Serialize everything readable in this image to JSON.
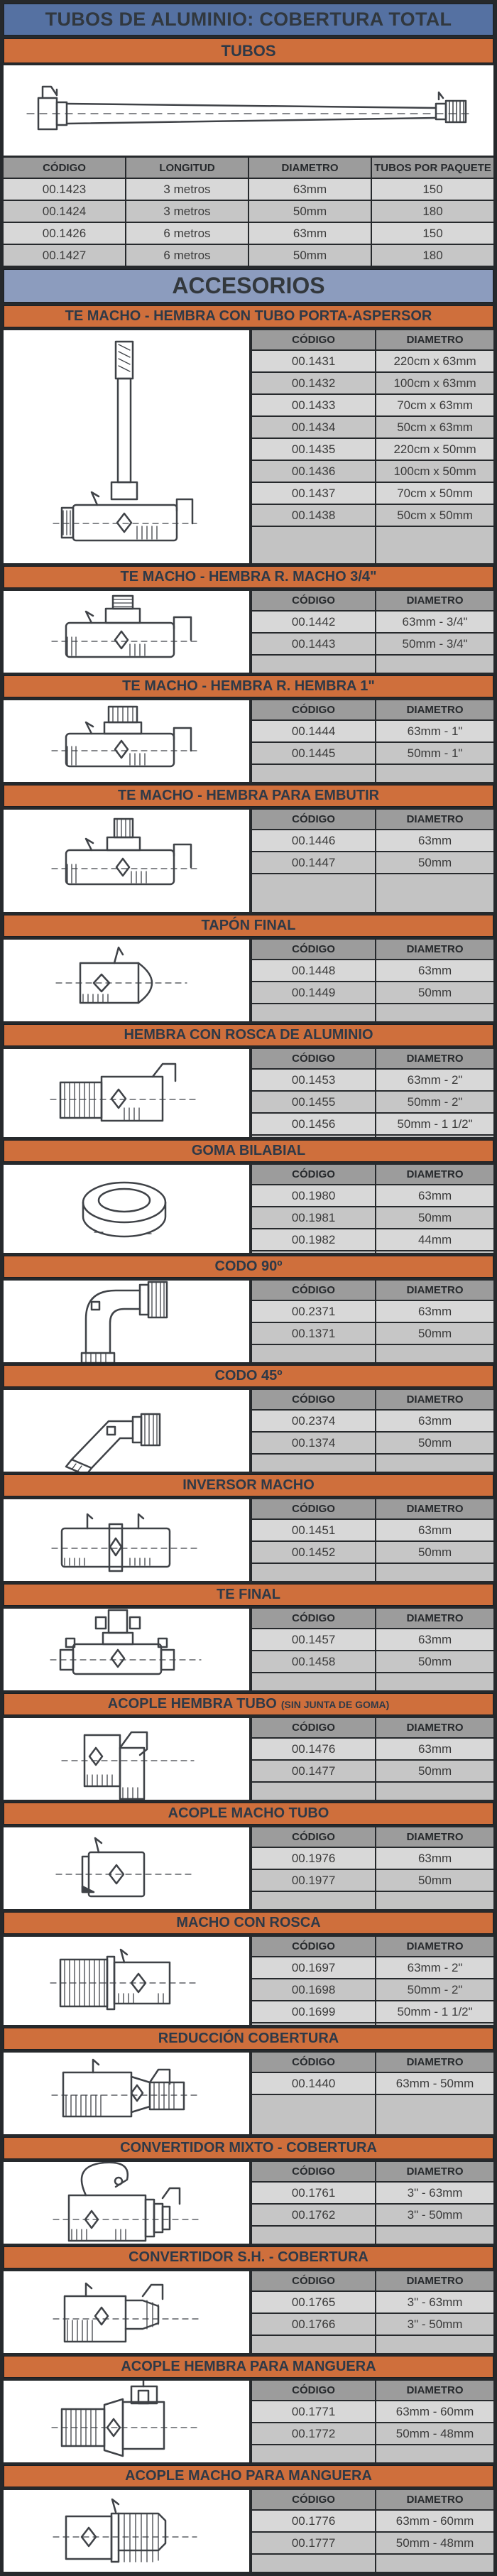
{
  "page": {
    "title": "TUBOS DE ALUMINIO: COBERTURA TOTAL",
    "accessories_header": "ACCESORIOS"
  },
  "colors": {
    "title_bg": "#5571a2",
    "accessories_bg": "#8c9cbe",
    "section_bar_bg": "#cf6f3c",
    "frame_bg": "#26292c",
    "table_header_bg": "#9c9c9c",
    "row_odd": "#d8d8d8",
    "row_even": "#c6c6c6",
    "filler": "#c3c3c3",
    "illustration_bg": "#ffffff"
  },
  "tubos": {
    "header": "TUBOS",
    "illustration_icon": "aluminum-tube-icon",
    "columns": [
      "CÓDIGO",
      "LONGITUD",
      "DIAMETRO",
      "TUBOS POR PAQUETE"
    ],
    "rows": [
      [
        "00.1423",
        "3 metros",
        "63mm",
        "150"
      ],
      [
        "00.1424",
        "3 metros",
        "50mm",
        "180"
      ],
      [
        "00.1426",
        "6 metros",
        "63mm",
        "150"
      ],
      [
        "00.1427",
        "6 metros",
        "50mm",
        "180"
      ]
    ]
  },
  "accessory_columns": [
    "CÓDIGO",
    "DIAMETRO"
  ],
  "accessories": [
    {
      "title": "TE MACHO - HEMBRA CON TUBO PORTA-ASPERSOR",
      "icon": "te-riser-icon",
      "size": "tall",
      "rows": [
        [
          "00.1431",
          "220cm x 63mm"
        ],
        [
          "00.1432",
          "100cm x 63mm"
        ],
        [
          "00.1433",
          "70cm x 63mm"
        ],
        [
          "00.1434",
          "50cm x 63mm"
        ],
        [
          "00.1435",
          "220cm x 50mm"
        ],
        [
          "00.1436",
          "100cm x 50mm"
        ],
        [
          "00.1437",
          "70cm x 50mm"
        ],
        [
          "00.1438",
          "50cm x 50mm"
        ]
      ]
    },
    {
      "title": "TE MACHO - HEMBRA R. MACHO 3/4\"",
      "icon": "tee-male-thread-icon",
      "rows": [
        [
          "00.1442",
          "63mm - 3/4\""
        ],
        [
          "00.1443",
          "50mm - 3/4\""
        ]
      ]
    },
    {
      "title": "TE MACHO - HEMBRA R. HEMBRA 1\"",
      "icon": "tee-female-thread-icon",
      "rows": [
        [
          "00.1444",
          "63mm - 1\""
        ],
        [
          "00.1445",
          "50mm - 1\""
        ]
      ]
    },
    {
      "title": "TE MACHO - HEMBRA PARA EMBUTIR",
      "icon": "tee-flush-icon",
      "size": "mid",
      "rows": [
        [
          "00.1446",
          "63mm"
        ],
        [
          "00.1447",
          "50mm"
        ]
      ]
    },
    {
      "title": "TAPÓN FINAL",
      "icon": "end-plug-icon",
      "rows": [
        [
          "00.1448",
          "63mm"
        ],
        [
          "00.1449",
          "50mm"
        ]
      ]
    },
    {
      "title": "HEMBRA CON ROSCA DE ALUMINIO",
      "icon": "female-thread-icon",
      "rows": [
        [
          "00.1453",
          "63mm - 2\""
        ],
        [
          "00.1455",
          "50mm - 2\""
        ],
        [
          "00.1456",
          "50mm - 1 1/2\""
        ]
      ]
    },
    {
      "title": "GOMA BILABIAL",
      "icon": "rubber-ring-icon",
      "rows": [
        [
          "00.1980",
          "63mm"
        ],
        [
          "00.1981",
          "50mm"
        ],
        [
          "00.1982",
          "44mm"
        ]
      ]
    },
    {
      "title": "CODO 90º",
      "icon": "elbow-90-icon",
      "rows": [
        [
          "00.2371",
          "63mm"
        ],
        [
          "00.1371",
          "50mm"
        ]
      ]
    },
    {
      "title": "CODO 45º",
      "icon": "elbow-45-icon",
      "rows": [
        [
          "00.2374",
          "63mm"
        ],
        [
          "00.1374",
          "50mm"
        ]
      ]
    },
    {
      "title": "INVERSOR MACHO",
      "icon": "male-inverter-icon",
      "rows": [
        [
          "00.1451",
          "63mm"
        ],
        [
          "00.1452",
          "50mm"
        ]
      ]
    },
    {
      "title": "TE FINAL",
      "icon": "end-tee-icon",
      "rows": [
        [
          "00.1457",
          "63mm"
        ],
        [
          "00.1458",
          "50mm"
        ]
      ]
    },
    {
      "title": "ACOPLE HEMBRA TUBO",
      "suffix": "(SIN JUNTA DE GOMA)",
      "icon": "female-tube-coupling-icon",
      "rows": [
        [
          "00.1476",
          "63mm"
        ],
        [
          "00.1477",
          "50mm"
        ]
      ]
    },
    {
      "title": "ACOPLE MACHO TUBO",
      "icon": "male-tube-coupling-icon",
      "rows": [
        [
          "00.1976",
          "63mm"
        ],
        [
          "00.1977",
          "50mm"
        ]
      ]
    },
    {
      "title": "MACHO CON ROSCA",
      "icon": "male-thread-icon",
      "rows": [
        [
          "00.1697",
          "63mm - 2\""
        ],
        [
          "00.1698",
          "50mm - 2\""
        ],
        [
          "00.1699",
          "50mm - 1 1/2\""
        ]
      ]
    },
    {
      "title": "REDUCCIÓN COBERTURA",
      "icon": "reducer-icon",
      "rows": [
        [
          "00.1440",
          "63mm - 50mm"
        ]
      ]
    },
    {
      "title": "CONVERTIDOR MIXTO - COBERTURA",
      "icon": "mixed-converter-icon",
      "rows": [
        [
          "00.1761",
          "3\" - 63mm"
        ],
        [
          "00.1762",
          "3\" - 50mm"
        ]
      ]
    },
    {
      "title": "CONVERTIDOR S.H. - COBERTURA",
      "icon": "sh-converter-icon",
      "rows": [
        [
          "00.1765",
          "3\" - 63mm"
        ],
        [
          "00.1766",
          "3\" - 50mm"
        ]
      ]
    },
    {
      "title": "ACOPLE HEMBRA PARA MANGUERA",
      "icon": "female-hose-coupling-icon",
      "rows": [
        [
          "00.1771",
          "63mm - 60mm"
        ],
        [
          "00.1772",
          "50mm - 48mm"
        ]
      ]
    },
    {
      "title": "ACOPLE MACHO PARA MANGUERA",
      "icon": "male-hose-coupling-icon",
      "rows": [
        [
          "00.1776",
          "63mm - 60mm"
        ],
        [
          "00.1777",
          "50mm - 48mm"
        ]
      ]
    }
  ]
}
